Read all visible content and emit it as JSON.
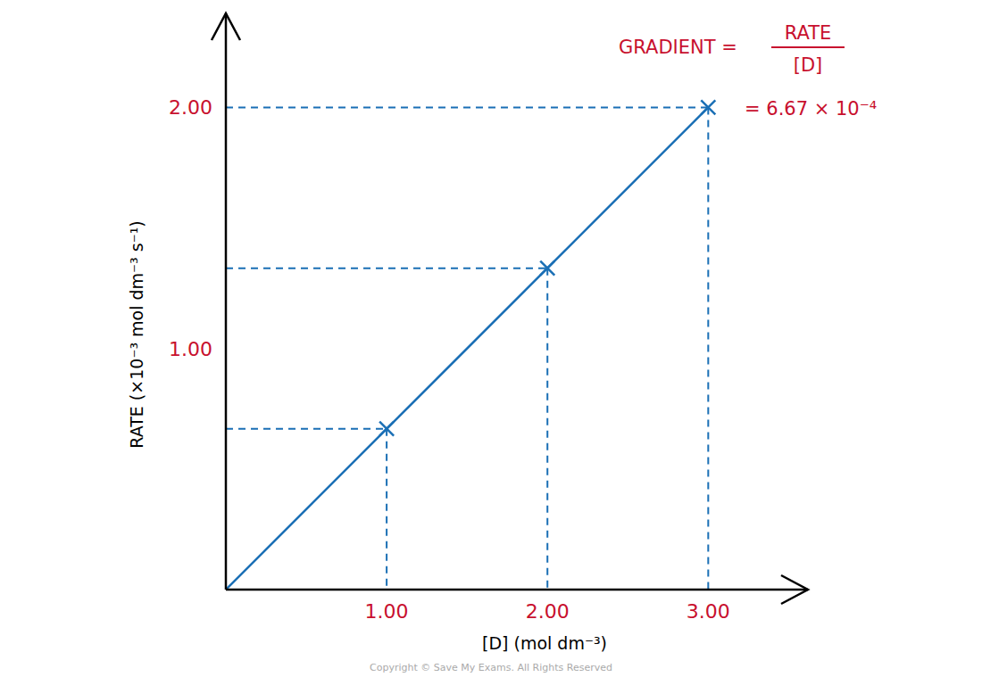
{
  "chart_data": {
    "type": "line",
    "x_label": "[D] (mol dm⁻³)",
    "y_label": "RATE  (×10⁻³ mol dm⁻³ s⁻¹)",
    "xlim": [
      0,
      3.62
    ],
    "ylim": [
      0,
      2.39
    ],
    "xticks": [
      {
        "value": 1,
        "label": "1.00"
      },
      {
        "value": 2,
        "label": "2.00"
      },
      {
        "value": 3,
        "label": "3.00"
      }
    ],
    "yticks": [
      {
        "value": 1,
        "label": "1.00"
      },
      {
        "value": 2,
        "label": "2.00"
      }
    ],
    "grid": false,
    "series": [
      {
        "type": "line",
        "color": "#1a6fb5",
        "line_style": "solid",
        "x": [
          0,
          3
        ],
        "values": [
          0,
          2.0
        ]
      },
      {
        "type": "scatter",
        "color": "#1a6fb5",
        "marker": "x",
        "x": [
          1,
          2,
          3
        ],
        "values": [
          0.667,
          1.333,
          2.0
        ]
      }
    ],
    "annotation": {
      "lhs": "GRADIENT =",
      "numerator": "RATE",
      "denominator": "[D]",
      "result": "= 6.67 × 10⁻⁴"
    },
    "copyright": "Copyright © Save My Exams. All Rights Reserved"
  }
}
